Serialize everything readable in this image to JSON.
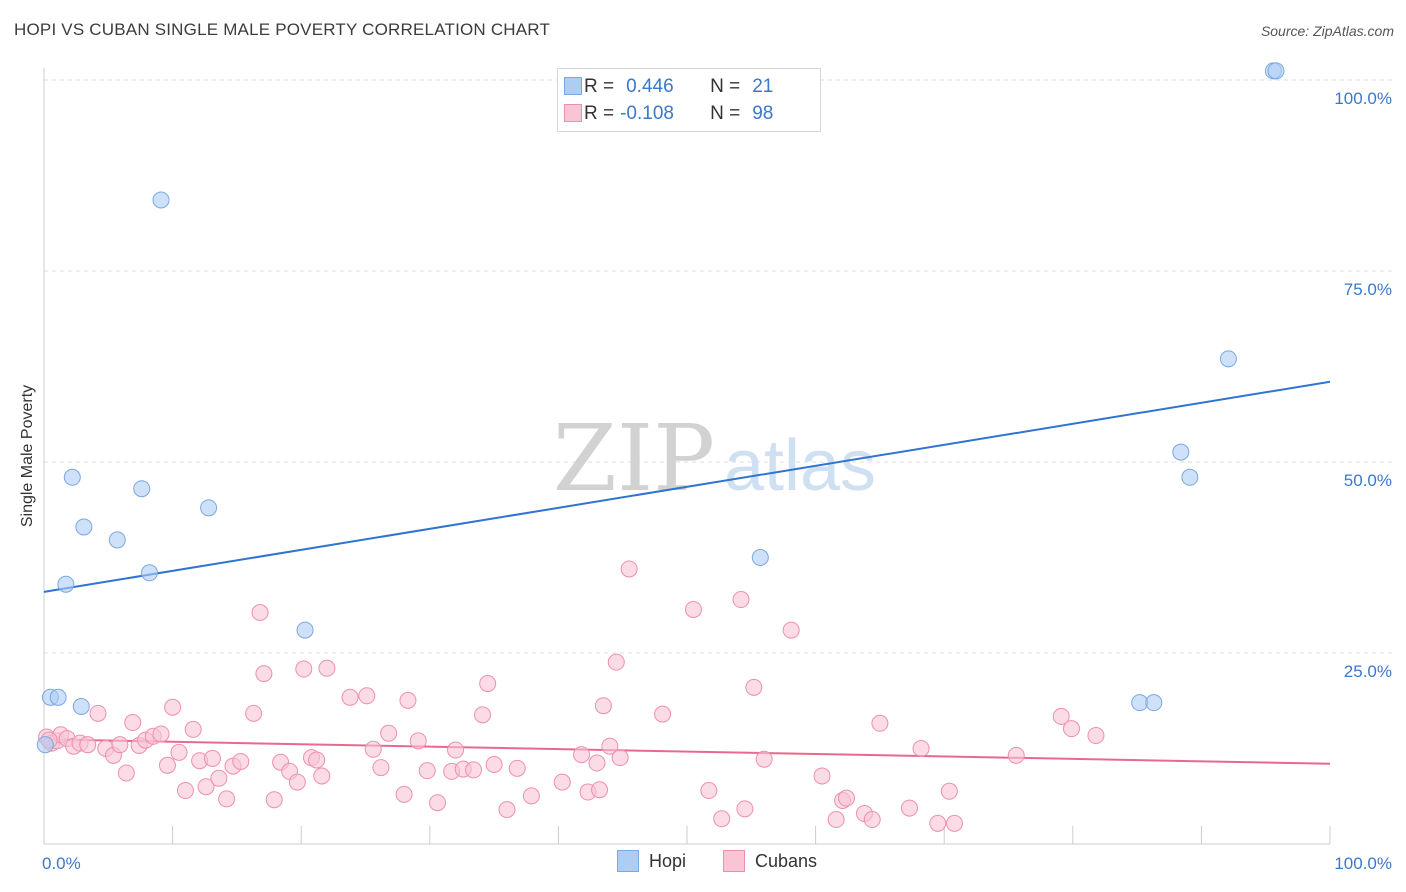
{
  "title": "HOPI VS CUBAN SINGLE MALE POVERTY CORRELATION CHART",
  "source": "Source: ZipAtlas.com",
  "watermark": {
    "left": "ZIP",
    "right": "atlas"
  },
  "legend_top": [
    {
      "r_label": "R =",
      "r_value": "0.446",
      "n_label": "N =",
      "n_value": "21"
    },
    {
      "r_label": "R =",
      "r_value": "-0.108",
      "n_label": "N =",
      "n_value": "98"
    }
  ],
  "legend_bottom": [
    {
      "label": "Hopi"
    },
    {
      "label": "Cubans"
    }
  ],
  "colors": {
    "hopi_fill": "#aecdf3",
    "hopi_stroke": "#7aa8e0",
    "hopi_line": "#2f74d0",
    "cuban_fill": "#f9c5d5",
    "cuban_stroke": "#ee8fae",
    "cuban_line": "#e8698f",
    "axis_label": "#3b78c9",
    "grid": "#dddddd"
  },
  "chart_data": {
    "type": "scatter",
    "title": "HOPI VS CUBAN SINGLE MALE POVERTY CORRELATION CHART",
    "xlabel": "",
    "ylabel": "Single Male Poverty",
    "xlim": [
      0,
      100
    ],
    "ylim": [
      0,
      102
    ],
    "x_tick_labels": [
      "0.0%",
      "100.0%"
    ],
    "y_ticks": [
      25,
      50,
      75,
      100
    ],
    "y_tick_labels": [
      "25.0%",
      "50.0%",
      "75.0%",
      "100.0%"
    ],
    "grid": true,
    "series": [
      {
        "name": "Hopi",
        "R": 0.446,
        "N": 21,
        "trend": {
          "x": [
            0,
            100
          ],
          "y": [
            33.0,
            60.5
          ]
        },
        "points": [
          [
            0.1,
            13.0
          ],
          [
            0.5,
            19.2
          ],
          [
            1.1,
            19.2
          ],
          [
            1.7,
            34.0
          ],
          [
            2.2,
            48.0
          ],
          [
            2.9,
            18.0
          ],
          [
            3.1,
            41.5
          ],
          [
            5.7,
            39.8
          ],
          [
            7.6,
            46.5
          ],
          [
            8.2,
            35.5
          ],
          [
            9.1,
            84.3
          ],
          [
            12.8,
            44.0
          ],
          [
            20.3,
            28.0
          ],
          [
            55.7,
            37.5
          ],
          [
            85.2,
            18.5
          ],
          [
            86.3,
            18.5
          ],
          [
            88.4,
            51.3
          ],
          [
            89.1,
            48.0
          ],
          [
            92.1,
            63.5
          ],
          [
            95.6,
            101.2
          ],
          [
            95.8,
            101.2
          ]
        ]
      },
      {
        "name": "Cubans",
        "R": -0.108,
        "N": 98,
        "trend": {
          "x": [
            0,
            100
          ],
          "y": [
            13.7,
            10.5
          ]
        },
        "points": [
          [
            0.2,
            14.0
          ],
          [
            0.6,
            13.2
          ],
          [
            1.0,
            13.5
          ],
          [
            1.3,
            14.3
          ],
          [
            1.8,
            13.8
          ],
          [
            2.3,
            12.8
          ],
          [
            2.8,
            13.2
          ],
          [
            3.4,
            13.0
          ],
          [
            4.2,
            17.1
          ],
          [
            4.8,
            12.5
          ],
          [
            5.4,
            11.6
          ],
          [
            5.9,
            13.0
          ],
          [
            6.4,
            9.3
          ],
          [
            6.9,
            15.9
          ],
          [
            7.4,
            12.9
          ],
          [
            7.9,
            13.6
          ],
          [
            8.5,
            14.1
          ],
          [
            9.1,
            14.4
          ],
          [
            9.6,
            10.3
          ],
          [
            10.0,
            17.9
          ],
          [
            10.5,
            12.0
          ],
          [
            11.0,
            7.0
          ],
          [
            11.6,
            15.0
          ],
          [
            12.1,
            10.9
          ],
          [
            12.6,
            7.5
          ],
          [
            13.1,
            11.2
          ],
          [
            13.6,
            8.6
          ],
          [
            14.2,
            5.9
          ],
          [
            14.7,
            10.2
          ],
          [
            15.3,
            10.8
          ],
          [
            16.3,
            17.1
          ],
          [
            16.8,
            30.3
          ],
          [
            17.1,
            22.3
          ],
          [
            17.9,
            5.8
          ],
          [
            18.4,
            10.7
          ],
          [
            19.1,
            9.5
          ],
          [
            19.7,
            8.1
          ],
          [
            20.2,
            22.9
          ],
          [
            20.8,
            11.3
          ],
          [
            21.2,
            11.0
          ],
          [
            21.6,
            8.9
          ],
          [
            22.0,
            23.0
          ],
          [
            23.8,
            19.2
          ],
          [
            25.1,
            19.4
          ],
          [
            25.6,
            12.4
          ],
          [
            26.2,
            10.0
          ],
          [
            26.8,
            14.5
          ],
          [
            28.0,
            6.5
          ],
          [
            28.3,
            18.8
          ],
          [
            29.1,
            13.5
          ],
          [
            29.8,
            9.6
          ],
          [
            30.6,
            5.4
          ],
          [
            31.7,
            9.5
          ],
          [
            32.0,
            12.3
          ],
          [
            32.6,
            9.8
          ],
          [
            33.4,
            9.7
          ],
          [
            34.1,
            16.9
          ],
          [
            34.5,
            21.0
          ],
          [
            35.0,
            10.4
          ],
          [
            36.0,
            4.5
          ],
          [
            36.8,
            9.9
          ],
          [
            37.9,
            6.3
          ],
          [
            40.3,
            8.1
          ],
          [
            41.8,
            11.7
          ],
          [
            42.3,
            6.8
          ],
          [
            43.0,
            10.6
          ],
          [
            43.2,
            7.1
          ],
          [
            43.5,
            18.1
          ],
          [
            44.0,
            12.8
          ],
          [
            44.5,
            23.8
          ],
          [
            44.8,
            11.3
          ],
          [
            45.5,
            36.0
          ],
          [
            48.1,
            17.0
          ],
          [
            50.5,
            30.7
          ],
          [
            51.7,
            7.0
          ],
          [
            52.7,
            3.3
          ],
          [
            54.2,
            32.0
          ],
          [
            54.5,
            4.6
          ],
          [
            55.2,
            20.5
          ],
          [
            56.0,
            11.1
          ],
          [
            58.1,
            28.0
          ],
          [
            60.5,
            8.9
          ],
          [
            61.6,
            3.2
          ],
          [
            62.1,
            5.7
          ],
          [
            62.4,
            6.0
          ],
          [
            63.8,
            4.0
          ],
          [
            64.4,
            3.2
          ],
          [
            65.0,
            15.8
          ],
          [
            67.3,
            4.7
          ],
          [
            68.2,
            12.5
          ],
          [
            69.5,
            2.7
          ],
          [
            70.4,
            6.9
          ],
          [
            70.8,
            2.7
          ],
          [
            75.6,
            11.6
          ],
          [
            79.1,
            16.7
          ],
          [
            79.9,
            15.1
          ],
          [
            81.8,
            14.2
          ],
          [
            0.4,
            13.6
          ]
        ]
      }
    ]
  }
}
